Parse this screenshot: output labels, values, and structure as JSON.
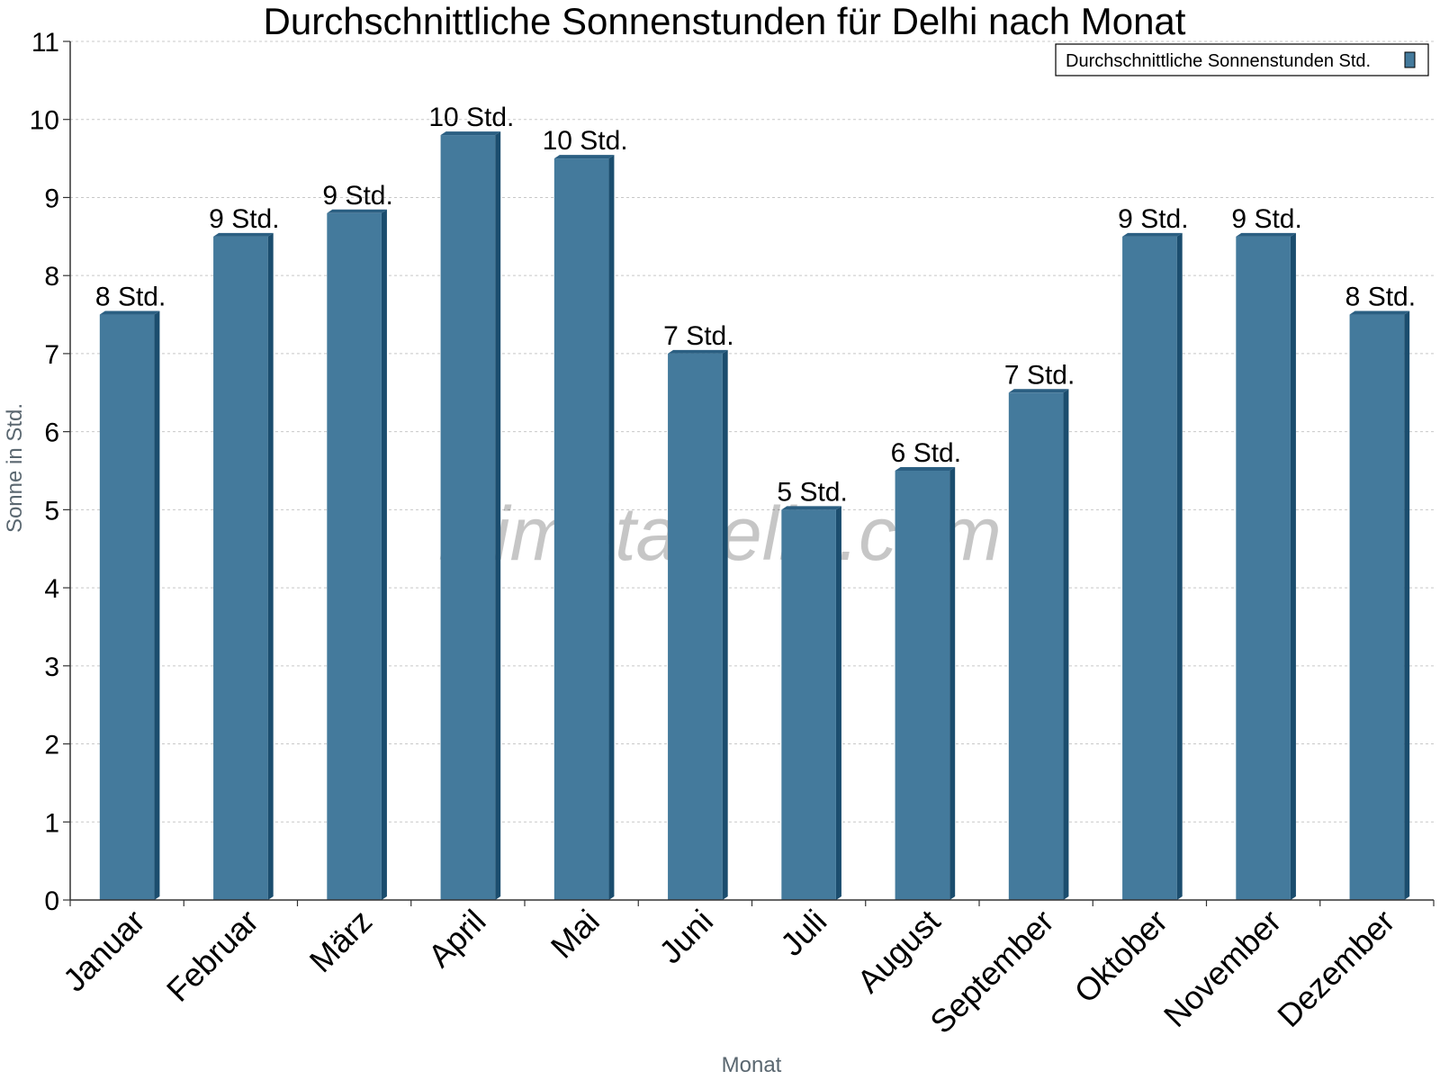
{
  "chart_data": {
    "type": "bar",
    "title": "Durchschnittliche Sonnenstunden für Delhi nach Monat",
    "xlabel": "Monat",
    "ylabel": "Sonne in Std.",
    "ylim": [
      0,
      11
    ],
    "yticks": [
      "0",
      "1",
      "2",
      "3",
      "4",
      "5",
      "6",
      "7",
      "8",
      "9",
      "10",
      "11"
    ],
    "grid": true,
    "legend_position": "top-right",
    "categories": [
      "Januar",
      "Februar",
      "März",
      "April",
      "Mai",
      "Juni",
      "Juli",
      "August",
      "September",
      "Oktober",
      "November",
      "Dezember"
    ],
    "series": [
      {
        "name": "Durchschnittliche Sonnenstunden Std.",
        "color": "#447a9c",
        "values": [
          7.5,
          8.5,
          8.8,
          9.8,
          9.5,
          7.0,
          5.0,
          5.5,
          6.5,
          8.5,
          8.5,
          7.5
        ],
        "labels": [
          "8 Std.",
          "9 Std.",
          "9 Std.",
          "10 Std.",
          "10 Std.",
          "7 Std.",
          "5 Std.",
          "6 Std.",
          "7 Std.",
          "9 Std.",
          "9 Std.",
          "8 Std."
        ]
      }
    ],
    "watermark": "klimatabelle.com"
  },
  "colors": {
    "bar_front": "#447a9c",
    "bar_side": "#1b4d6e",
    "bar_top": "#2b5f82"
  }
}
